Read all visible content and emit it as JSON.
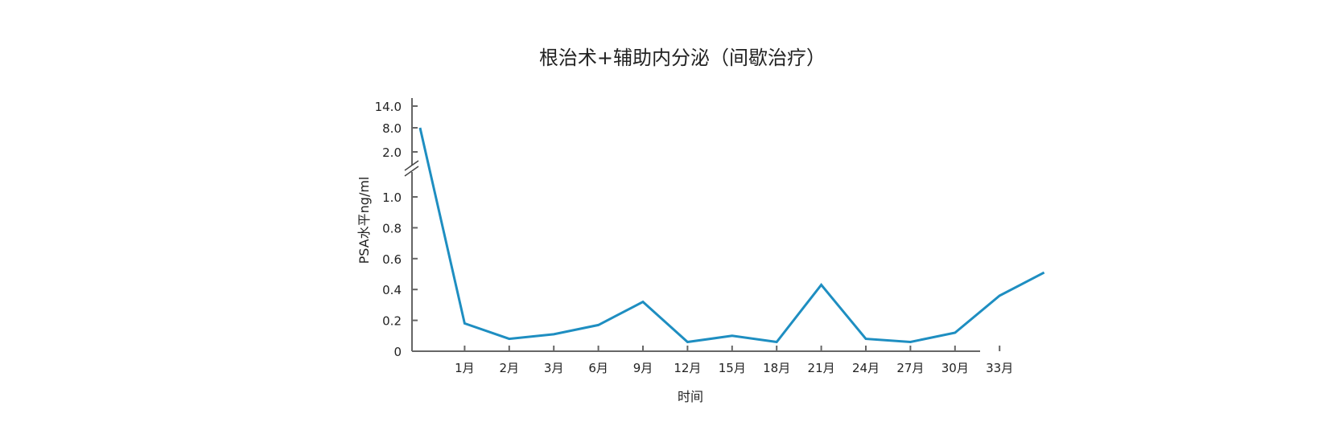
{
  "chart_data": {
    "type": "line",
    "title": "根治术+辅助内分泌（间歇治疗）",
    "xlabel": "时间",
    "ylabel": "PSA水平ng/ml",
    "x_categories": [
      "",
      "1月",
      "2月",
      "3月",
      "6月",
      "9月",
      "12月",
      "15月",
      "18月",
      "21月",
      "24月",
      "27月",
      "30月",
      "33月",
      ""
    ],
    "values": [
      8.0,
      0.18,
      0.08,
      0.11,
      0.17,
      0.32,
      0.06,
      0.1,
      0.06,
      0.43,
      0.08,
      0.06,
      0.12,
      0.36,
      0.51
    ],
    "axis_break": {
      "lower_range": [
        0,
        1.0
      ],
      "upper_ticks": [
        "2.0",
        "8.0",
        "14.0"
      ],
      "upper_values": [
        2.0,
        8.0,
        14.0
      ]
    },
    "y_ticks_lower": [
      "0",
      "0.2",
      "0.4",
      "0.6",
      "0.8",
      "1.0"
    ],
    "y_tick_values_lower": [
      0,
      0.2,
      0.4,
      0.6,
      0.8,
      1.0
    ],
    "grid": false,
    "line_color": "#1e8ec1",
    "axis_color": "#666666"
  }
}
